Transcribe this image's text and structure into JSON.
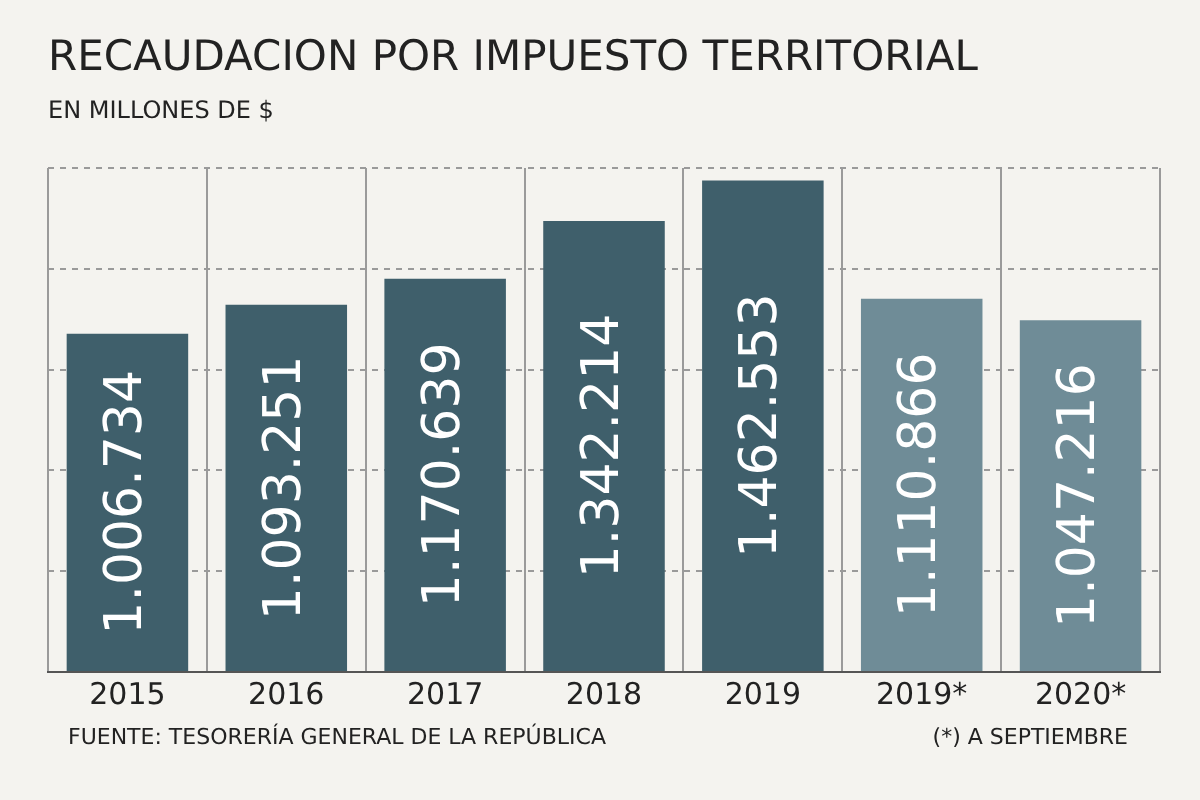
{
  "chart_data": {
    "type": "bar",
    "title": "RECAUDACION POR IMPUESTO TERRITORIAL",
    "subtitle": "EN MILLONES DE $",
    "categories": [
      "2015",
      "2016",
      "2017",
      "2018",
      "2019",
      "2019*",
      "2020*"
    ],
    "values": [
      1006734,
      1093251,
      1170639,
      1342214,
      1462553,
      1110866,
      1047216
    ],
    "colors": [
      "#3f5f6b",
      "#3f5f6b",
      "#3f5f6b",
      "#3f5f6b",
      "#3f5f6b",
      "#6f8c97",
      "#6f8c97"
    ],
    "value_labels": [
      "1.006.734",
      "1.093.251",
      "1.170.639",
      "1.342.214",
      "1.462.553",
      "1.110.866",
      "1.047.216"
    ],
    "ylim": [
      0,
      1500000
    ],
    "yticks": [
      {
        "value": 0,
        "label": null
      },
      {
        "value": 300000,
        "label": null
      },
      {
        "value": 600000,
        "label": null
      },
      {
        "value": 900000,
        "label": null
      },
      {
        "value": 1200000,
        "label": null
      },
      {
        "value": 1500000,
        "label": null
      }
    ],
    "tick_labels": "x",
    "grid": true,
    "annotations": [
      "FUENTE: TESORERÍA GENERAL DE LA REPÚBLICA",
      "(*) A SEPTIEMBRE"
    ]
  }
}
